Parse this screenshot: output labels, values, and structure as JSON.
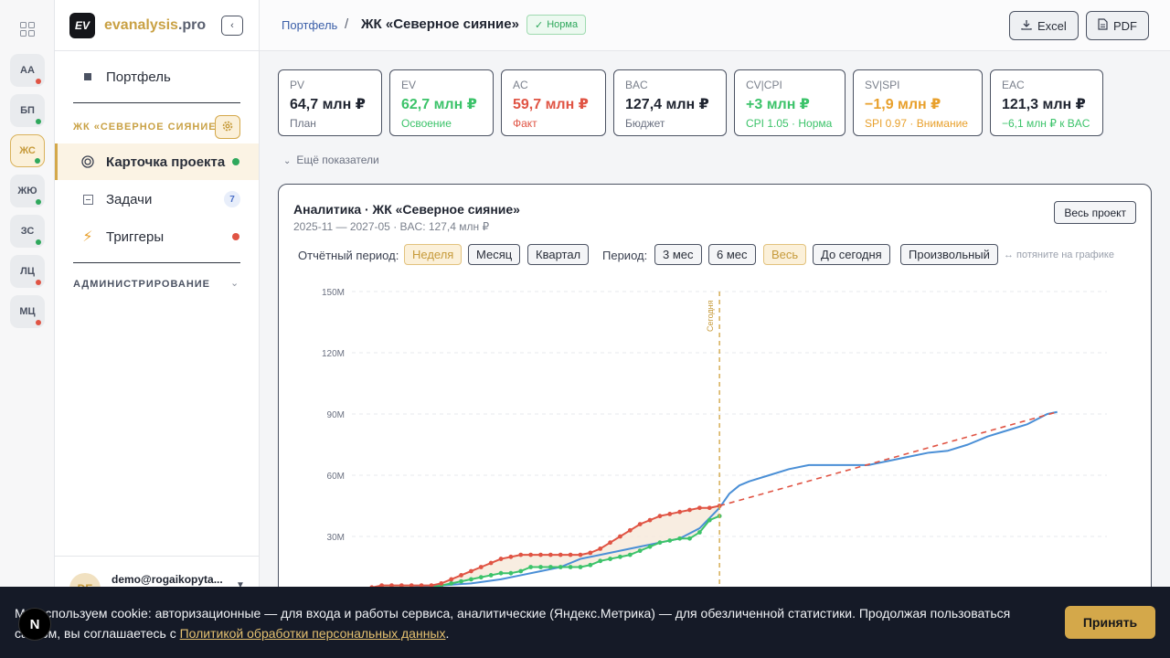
{
  "app": {
    "brand_prefix": "evanalysis",
    "brand_suffix": ".pro",
    "logo_badge": "EV"
  },
  "rail": {
    "items": [
      {
        "label": "АА",
        "dot_color": "#e05444"
      },
      {
        "label": "БП",
        "dot_color": "#2fa85c"
      },
      {
        "label": "ЖС",
        "dot_color": "#2fa85c",
        "active": true
      },
      {
        "label": "ЖЮ",
        "dot_color": "#2fa85c"
      },
      {
        "label": "ЗС",
        "dot_color": "#2fa85c"
      },
      {
        "label": "ЛЦ",
        "dot_color": "#e05444"
      },
      {
        "label": "МЦ",
        "dot_color": "#e05444"
      }
    ]
  },
  "sidebar": {
    "portfolio": "Портфель",
    "project_label": "ЖК «СЕВЕРНОЕ СИЯНИЕ»",
    "project_card": "Карточка проекта",
    "tasks": "Задачи",
    "tasks_count": "7",
    "triggers": "Триггеры",
    "admin_label": "АДМИНИСТРИРОВАНИЕ",
    "user_initials": "DE",
    "user_email": "demo@rogaikopyta..."
  },
  "topbar": {
    "crumb_portfolio": "Портфель",
    "crumb_sep": "/",
    "crumb_current": "ЖК «Северное сияние»",
    "status": "Норма",
    "excel": "Excel",
    "pdf": "PDF"
  },
  "colors": {
    "accent": "#d4a84a",
    "good": "#2fa85c",
    "bad": "#e05444",
    "warn": "#e8a02c",
    "plan": "#4a8fd6"
  },
  "kpis": [
    {
      "label": "PV",
      "value": "64,7 млн ₽",
      "sub": "План",
      "value_color": "#1f2430",
      "sub_color": "#6a7080"
    },
    {
      "label": "EV",
      "value": "62,7 млн ₽",
      "sub": "Освоение",
      "value_color": "#3cc36a",
      "sub_color": "#3cc36a"
    },
    {
      "label": "AC",
      "value": "59,7 млн ₽",
      "sub": "Факт",
      "value_color": "#e05444",
      "sub_color": "#e05444"
    },
    {
      "label": "BAC",
      "value": "127,4 млн ₽",
      "sub": "Бюджет",
      "value_color": "#1f2430",
      "sub_color": "#6a7080"
    },
    {
      "label": "CV|CPI",
      "value": "+3 млн ₽",
      "sub": "CPI 1.05 · Норма",
      "value_color": "#3cc36a",
      "sub_color": "#3cc36a"
    },
    {
      "label": "SV|SPI",
      "value": "−1,9 млн ₽",
      "sub": "SPI 0.97 · Внимание",
      "value_color": "#e8a02c",
      "sub_color": "#e8a02c"
    },
    {
      "label": "EAC",
      "value": "121,3 млн ₽",
      "sub": "−6,1 млн ₽ к BAC",
      "value_color": "#1f2430",
      "sub_color": "#3cc36a"
    }
  ],
  "more_label": "Ещё показатели",
  "chart_card": {
    "title": "Аналитика · ЖК «Северное сияние»",
    "subtitle": "2025-11 — 2027-05 · BAC: 127,4 млн ₽",
    "whole_project": "Весь проект",
    "report_period_label": "Отчётный период:",
    "report_periods": [
      "Неделя",
      "Месяц",
      "Квартал"
    ],
    "report_selected": "Неделя",
    "period_label": "Период:",
    "periods": [
      "3 мес",
      "6 мес",
      "Весь",
      "До сегодня",
      "Произвольный"
    ],
    "period_selected": "Весь",
    "drag_hint": "↔ потяните на графике"
  },
  "chart_data": {
    "type": "line",
    "y_ticks": [
      "150M",
      "120M",
      "90M",
      "60M",
      "30M"
    ],
    "ylim": [
      0,
      150
    ],
    "y_unit": "млн ₽",
    "today_label": "Сегодня",
    "x_range": [
      0,
      76
    ],
    "today_x": 37,
    "series": [
      {
        "key": "pv",
        "color": "#4a8fd6",
        "points": [
          [
            0,
            0
          ],
          [
            2,
            2
          ],
          [
            4,
            4
          ],
          [
            6,
            5
          ],
          [
            9,
            6
          ],
          [
            12,
            7
          ],
          [
            15,
            9
          ],
          [
            17,
            11
          ],
          [
            19,
            13
          ],
          [
            21,
            15
          ],
          [
            23,
            19
          ],
          [
            25,
            21
          ],
          [
            27,
            23
          ],
          [
            29,
            25
          ],
          [
            31,
            27
          ],
          [
            33,
            29
          ],
          [
            35,
            34
          ],
          [
            37,
            44
          ],
          [
            38,
            51
          ],
          [
            39,
            55
          ],
          [
            40,
            57
          ],
          [
            42,
            60
          ],
          [
            44,
            63
          ],
          [
            46,
            65
          ],
          [
            48,
            65
          ],
          [
            50,
            65
          ],
          [
            52,
            65
          ],
          [
            54,
            67
          ],
          [
            56,
            69
          ],
          [
            58,
            71
          ],
          [
            60,
            72
          ],
          [
            62,
            75
          ],
          [
            64,
            79
          ],
          [
            66,
            82
          ],
          [
            68,
            85
          ],
          [
            70,
            90
          ],
          [
            71,
            91
          ]
        ]
      },
      {
        "key": "ev",
        "color": "#3cc36a",
        "markers": true,
        "points": [
          [
            0,
            0
          ],
          [
            1,
            2
          ],
          [
            2,
            4
          ],
          [
            3,
            5
          ],
          [
            4,
            5
          ],
          [
            5,
            5
          ],
          [
            6,
            5
          ],
          [
            7,
            5
          ],
          [
            8,
            5
          ],
          [
            9,
            6
          ],
          [
            10,
            7
          ],
          [
            11,
            8
          ],
          [
            12,
            9
          ],
          [
            13,
            10
          ],
          [
            14,
            11
          ],
          [
            15,
            12
          ],
          [
            16,
            12
          ],
          [
            17,
            13
          ],
          [
            18,
            15
          ],
          [
            19,
            15
          ],
          [
            20,
            15
          ],
          [
            21,
            15
          ],
          [
            22,
            15
          ],
          [
            23,
            15
          ],
          [
            24,
            16
          ],
          [
            25,
            18
          ],
          [
            26,
            19
          ],
          [
            27,
            20
          ],
          [
            28,
            21
          ],
          [
            29,
            23
          ],
          [
            30,
            25
          ],
          [
            31,
            27
          ],
          [
            32,
            28
          ],
          [
            33,
            29
          ],
          [
            34,
            29
          ],
          [
            35,
            32
          ],
          [
            36,
            38
          ],
          [
            37,
            40
          ]
        ]
      },
      {
        "key": "ac",
        "color": "#e05444",
        "markers": true,
        "points": [
          [
            0,
            0
          ],
          [
            1,
            3
          ],
          [
            2,
            5
          ],
          [
            3,
            6
          ],
          [
            4,
            6
          ],
          [
            5,
            6
          ],
          [
            6,
            6
          ],
          [
            7,
            6
          ],
          [
            8,
            6
          ],
          [
            9,
            7
          ],
          [
            10,
            9
          ],
          [
            11,
            11
          ],
          [
            12,
            13
          ],
          [
            13,
            15
          ],
          [
            14,
            17
          ],
          [
            15,
            19
          ],
          [
            16,
            20
          ],
          [
            17,
            21
          ],
          [
            18,
            21
          ],
          [
            19,
            21
          ],
          [
            20,
            21
          ],
          [
            21,
            21
          ],
          [
            22,
            21
          ],
          [
            23,
            21
          ],
          [
            24,
            22
          ],
          [
            25,
            24
          ],
          [
            26,
            27
          ],
          [
            27,
            30
          ],
          [
            28,
            33
          ],
          [
            29,
            36
          ],
          [
            30,
            38
          ],
          [
            31,
            40
          ],
          [
            32,
            41
          ],
          [
            33,
            42
          ],
          [
            34,
            43
          ],
          [
            35,
            44
          ],
          [
            36,
            44
          ],
          [
            37,
            45
          ]
        ]
      },
      {
        "key": "eac",
        "color": "#e05444",
        "dashed": true,
        "points": [
          [
            37,
            45
          ],
          [
            71,
            91
          ]
        ]
      }
    ]
  },
  "cookie": {
    "text": "Мы используем cookie: авторизационные — для входа и работы сервиса, аналитические (Яндекс.Метрика) — для обезличенной статистики. Продолжая пользоваться сайтом, вы соглашаетесь с ",
    "link": "Политикой обработки персональных данных",
    "tail": ".",
    "accept": "Принять"
  },
  "next_badge": "N"
}
